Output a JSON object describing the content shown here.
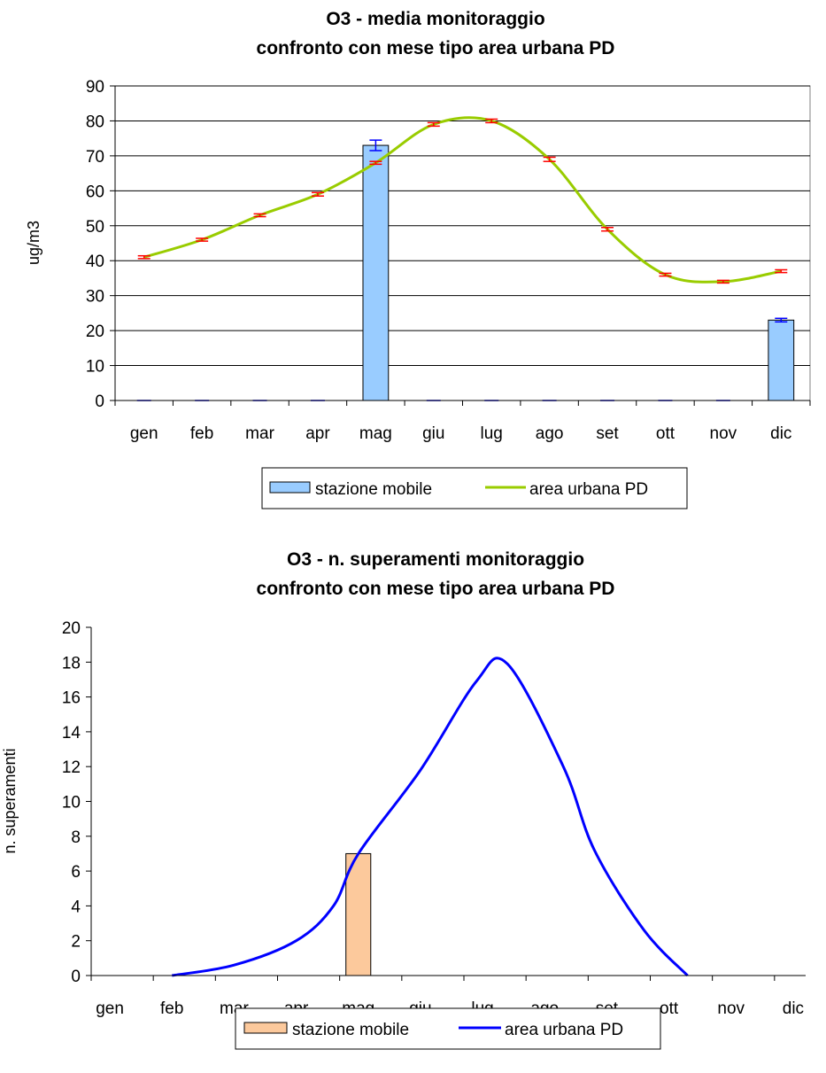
{
  "chart_data": [
    {
      "type": "bar",
      "title": "O3 - media monitoraggio",
      "subtitle": "confronto con mese tipo area urbana PD",
      "xlabel": "",
      "ylabel": "ug/m3",
      "ylim": [
        0,
        90
      ],
      "yticks": [
        0,
        10,
        20,
        30,
        40,
        50,
        60,
        70,
        80,
        90
      ],
      "grid": true,
      "legend_position": "bottom",
      "categories": [
        "gen",
        "feb",
        "mar",
        "apr",
        "mag",
        "giu",
        "lug",
        "ago",
        "set",
        "ott",
        "nov",
        "dic"
      ],
      "series": [
        {
          "name": "stazione mobile",
          "kind": "bar",
          "color": "#99ccff",
          "errorbar_color": "#0000ff",
          "values": [
            0,
            0,
            0,
            0,
            73,
            0,
            0,
            0,
            0,
            0,
            0,
            23
          ],
          "error": [
            0,
            0,
            0,
            0,
            1.5,
            0,
            0,
            0,
            0,
            0,
            0,
            0.4
          ]
        },
        {
          "name": "area urbana PD",
          "kind": "line",
          "color": "#99cc00",
          "errorbar_color": "#ff0000",
          "values": [
            41,
            46,
            53,
            59,
            68,
            79,
            80,
            69,
            49,
            36,
            34,
            37
          ],
          "error": [
            0.4,
            0.4,
            0.4,
            0.5,
            0.4,
            0.5,
            0.5,
            0.6,
            0.5,
            0.4,
            0.3,
            0.4
          ]
        }
      ]
    },
    {
      "type": "bar",
      "title": "O3 - n. superamenti monitoraggio",
      "subtitle": "confronto con mese tipo area urbana PD",
      "xlabel": "",
      "ylabel": "n. superamenti",
      "ylim": [
        0,
        20
      ],
      "yticks": [
        0,
        2,
        4,
        6,
        8,
        10,
        12,
        14,
        16,
        18,
        20
      ],
      "grid": false,
      "legend_position": "bottom",
      "categories": [
        "gen",
        "feb",
        "mar",
        "apr",
        "mag",
        "giu",
        "lug",
        "ago",
        "set",
        "ott",
        "nov",
        "dic"
      ],
      "series": [
        {
          "name": "stazione mobile",
          "kind": "bar",
          "color": "#fcc99c",
          "values": [
            0,
            0,
            0,
            0,
            7,
            0,
            0,
            0,
            0,
            0,
            0,
            0
          ]
        },
        {
          "name": "area urbana PD",
          "kind": "line",
          "color": "#0000ff",
          "x": [
            1.5,
            2.5,
            3.5,
            4.1,
            4.5,
            5.5,
            6.4,
            6.9,
            7.8,
            8.3,
            9.1,
            9.8
          ],
          "values": [
            0,
            0.6,
            2.0,
            4.0,
            7.0,
            11.8,
            16.9,
            17.9,
            12.0,
            7.2,
            2.6,
            0
          ]
        }
      ]
    }
  ]
}
